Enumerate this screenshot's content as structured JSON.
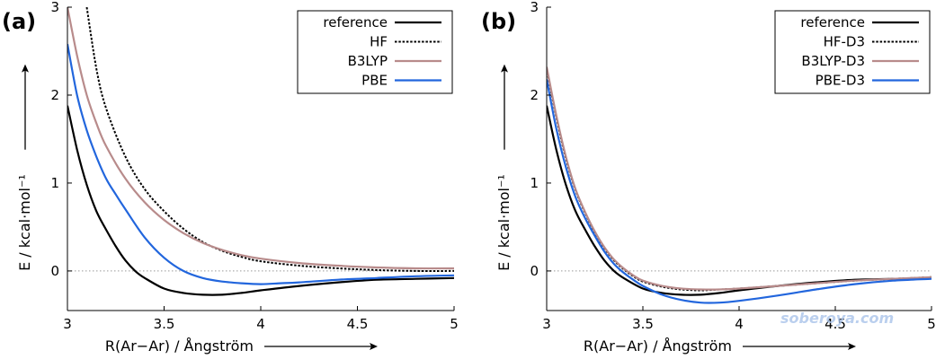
{
  "chart_data": [
    {
      "type": "line",
      "panel_label": "(a)",
      "xlabel": "R(Ar−Ar) / Ångström",
      "ylabel": "E / kcal·mol⁻¹",
      "xlim": [
        3,
        5
      ],
      "ylim": [
        -0.45,
        3
      ],
      "x_ticks": [
        "3",
        "3.5",
        "4",
        "4.5",
        "5"
      ],
      "y_ticks": [
        "0",
        "1",
        "2",
        "3"
      ],
      "zero_line": true,
      "legend_position": "top-right",
      "series": [
        {
          "name": "reference",
          "color": "#000000",
          "dash": "solid",
          "x": [
            3.0,
            3.05,
            3.1,
            3.15,
            3.2,
            3.25,
            3.3,
            3.35,
            3.4,
            3.5,
            3.6,
            3.7,
            3.8,
            3.9,
            4.0,
            4.2,
            4.4,
            4.6,
            4.8,
            5.0
          ],
          "y": [
            1.88,
            1.38,
            0.98,
            0.68,
            0.47,
            0.28,
            0.12,
            0.0,
            -0.08,
            -0.2,
            -0.25,
            -0.27,
            -0.27,
            -0.25,
            -0.22,
            -0.17,
            -0.13,
            -0.1,
            -0.09,
            -0.08
          ]
        },
        {
          "name": "HF",
          "color": "#000000",
          "dash": "dotted",
          "x": [
            3.1,
            3.15,
            3.2,
            3.3,
            3.4,
            3.5,
            3.6,
            3.7,
            3.8,
            3.9,
            4.0,
            4.2,
            4.4,
            4.6,
            4.8,
            5.0
          ],
          "y": [
            3.0,
            2.3,
            1.85,
            1.3,
            0.93,
            0.68,
            0.48,
            0.33,
            0.23,
            0.16,
            0.11,
            0.06,
            0.03,
            0.01,
            0.0,
            0.0
          ]
        },
        {
          "name": "B3LYP",
          "color": "#b88b8b",
          "dash": "solid",
          "x": [
            3.0,
            3.05,
            3.1,
            3.15,
            3.2,
            3.3,
            3.4,
            3.5,
            3.6,
            3.7,
            3.8,
            3.9,
            4.0,
            4.2,
            4.4,
            4.6,
            4.8,
            5.0
          ],
          "y": [
            3.0,
            2.45,
            2.0,
            1.68,
            1.42,
            1.05,
            0.78,
            0.58,
            0.43,
            0.32,
            0.24,
            0.18,
            0.14,
            0.09,
            0.06,
            0.04,
            0.03,
            0.03
          ]
        },
        {
          "name": "PBE",
          "color": "#2266dd",
          "dash": "solid",
          "x": [
            3.0,
            3.05,
            3.1,
            3.15,
            3.2,
            3.25,
            3.3,
            3.4,
            3.5,
            3.6,
            3.7,
            3.8,
            3.9,
            4.0,
            4.1,
            4.2,
            4.4,
            4.6,
            4.8,
            5.0
          ],
          "y": [
            2.58,
            2.0,
            1.6,
            1.3,
            1.05,
            0.87,
            0.7,
            0.38,
            0.15,
            0.0,
            -0.08,
            -0.12,
            -0.14,
            -0.15,
            -0.14,
            -0.13,
            -0.1,
            -0.08,
            -0.06,
            -0.05
          ]
        }
      ]
    },
    {
      "type": "line",
      "panel_label": "(b)",
      "xlabel": "R(Ar−Ar) / Ångström",
      "ylabel": "E / kcal·mol⁻¹",
      "xlim": [
        3,
        5
      ],
      "ylim": [
        -0.45,
        3
      ],
      "x_ticks": [
        "3",
        "3.5",
        "4",
        "4.5",
        "5"
      ],
      "y_ticks": [
        "0",
        "1",
        "2",
        "3"
      ],
      "zero_line": true,
      "legend_position": "top-right",
      "series": [
        {
          "name": "reference",
          "color": "#000000",
          "dash": "solid",
          "x": [
            3.0,
            3.05,
            3.1,
            3.15,
            3.2,
            3.25,
            3.3,
            3.35,
            3.4,
            3.5,
            3.6,
            3.7,
            3.8,
            3.9,
            4.0,
            4.2,
            4.4,
            4.6,
            4.8,
            5.0
          ],
          "y": [
            1.88,
            1.38,
            0.98,
            0.68,
            0.47,
            0.28,
            0.12,
            0.0,
            -0.08,
            -0.2,
            -0.25,
            -0.27,
            -0.27,
            -0.25,
            -0.22,
            -0.17,
            -0.13,
            -0.1,
            -0.09,
            -0.08
          ]
        },
        {
          "name": "HF-D3",
          "color": "#000000",
          "dash": "dotted",
          "x": [
            3.0,
            3.05,
            3.1,
            3.15,
            3.2,
            3.25,
            3.3,
            3.35,
            3.4,
            3.45,
            3.5,
            3.6,
            3.7,
            3.8,
            3.9,
            4.0,
            4.2,
            4.4,
            4.6,
            4.8,
            5.0
          ],
          "y": [
            2.3,
            1.75,
            1.28,
            0.92,
            0.66,
            0.44,
            0.26,
            0.12,
            0.02,
            -0.06,
            -0.12,
            -0.18,
            -0.21,
            -0.22,
            -0.21,
            -0.2,
            -0.17,
            -0.14,
            -0.11,
            -0.09,
            -0.07
          ]
        },
        {
          "name": "B3LYP-D3",
          "color": "#b88b8b",
          "dash": "solid",
          "x": [
            3.0,
            3.05,
            3.1,
            3.15,
            3.2,
            3.25,
            3.3,
            3.35,
            3.4,
            3.45,
            3.5,
            3.6,
            3.7,
            3.8,
            3.9,
            4.0,
            4.2,
            4.4,
            4.6,
            4.8,
            5.0
          ],
          "y": [
            2.32,
            1.77,
            1.3,
            0.93,
            0.67,
            0.45,
            0.27,
            0.13,
            0.03,
            -0.05,
            -0.11,
            -0.17,
            -0.2,
            -0.21,
            -0.21,
            -0.2,
            -0.17,
            -0.14,
            -0.11,
            -0.09,
            -0.07
          ]
        },
        {
          "name": "PBE-D3",
          "color": "#2266dd",
          "dash": "solid",
          "x": [
            3.0,
            3.05,
            3.1,
            3.15,
            3.2,
            3.25,
            3.3,
            3.35,
            3.4,
            3.45,
            3.5,
            3.6,
            3.7,
            3.8,
            3.9,
            4.0,
            4.2,
            4.4,
            4.6,
            4.8,
            5.0
          ],
          "y": [
            2.18,
            1.62,
            1.18,
            0.84,
            0.6,
            0.4,
            0.22,
            0.08,
            -0.02,
            -0.1,
            -0.17,
            -0.27,
            -0.33,
            -0.36,
            -0.36,
            -0.34,
            -0.28,
            -0.21,
            -0.15,
            -0.11,
            -0.09
          ]
        }
      ]
    }
  ],
  "watermark": "soberoya.com"
}
